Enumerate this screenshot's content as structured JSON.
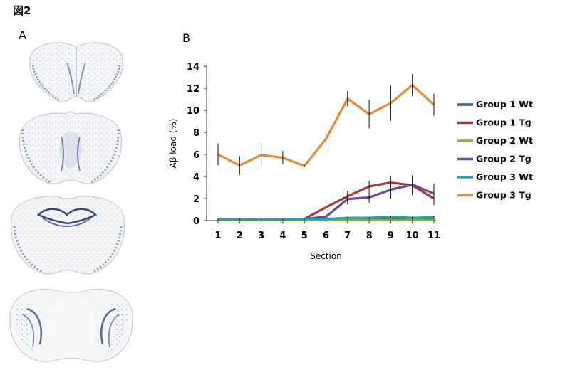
{
  "figure_title": "図2",
  "panel_a_label": "A",
  "panel_b_label": "B",
  "panel_a_images": [
    "brain-section-1",
    "brain-section-2",
    "brain-section-3",
    "brain-section-4"
  ],
  "colors": {
    "Group 1 Wt": "#2e5f8e",
    "Group 1 Tg": "#a33a38",
    "Group 2 Wt": "#7fb13f",
    "Group 2 Tg": "#6b4c97",
    "Group 3 Wt": "#2f9bad",
    "Group 3 Tg": "#e8893a"
  },
  "chart_data": {
    "type": "line",
    "title": "",
    "xlabel": "Section",
    "ylabel": "Aβ load (%)",
    "x": [
      1,
      2,
      3,
      4,
      5,
      6,
      7,
      8,
      9,
      10,
      11
    ],
    "ylim": [
      0,
      14
    ],
    "yticks": [
      0,
      2,
      4,
      6,
      8,
      10,
      12,
      14
    ],
    "legend_position": "right",
    "grid": false,
    "error_bars": true,
    "series": [
      {
        "name": "Group 1 Wt",
        "values": [
          0.1,
          0.1,
          0.1,
          0.1,
          0.1,
          0.1,
          0.1,
          0.1,
          0.1,
          0.1,
          0.1
        ],
        "err": [
          0.05,
          0.05,
          0.05,
          0.05,
          0.05,
          0.05,
          0.05,
          0.05,
          0.05,
          0.05,
          0.05
        ]
      },
      {
        "name": "Group 1 Tg",
        "values": [
          0.1,
          0.1,
          0.1,
          0.1,
          0.15,
          1.2,
          2.2,
          3.1,
          3.45,
          3.2,
          2.0
        ],
        "err": [
          0.05,
          0.05,
          0.05,
          0.05,
          0.1,
          0.5,
          0.5,
          0.5,
          0.6,
          0.9,
          0.6
        ]
      },
      {
        "name": "Group 2 Wt",
        "values": [
          0.05,
          0.05,
          0.05,
          0.05,
          0.05,
          0.05,
          0.05,
          0.05,
          0.05,
          0.05,
          0.05
        ],
        "err": [
          0.03,
          0.03,
          0.03,
          0.03,
          0.03,
          0.03,
          0.03,
          0.03,
          0.03,
          0.03,
          0.03
        ]
      },
      {
        "name": "Group 2 Tg",
        "values": [
          0.15,
          0.1,
          0.1,
          0.1,
          0.15,
          0.35,
          1.95,
          2.1,
          2.8,
          3.25,
          2.45
        ],
        "err": [
          0.05,
          0.05,
          0.05,
          0.05,
          0.1,
          1.0,
          0.5,
          0.5,
          0.8,
          0.8,
          0.9
        ]
      },
      {
        "name": "Group 3 Wt",
        "values": [
          0.1,
          0.1,
          0.1,
          0.1,
          0.15,
          0.15,
          0.25,
          0.25,
          0.35,
          0.25,
          0.3
        ],
        "err": [
          0.05,
          0.05,
          0.05,
          0.05,
          0.05,
          0.05,
          0.05,
          0.05,
          0.1,
          0.1,
          0.1
        ]
      },
      {
        "name": "Group 3 Tg",
        "values": [
          6.0,
          5.0,
          5.95,
          5.7,
          4.95,
          7.4,
          11.05,
          9.65,
          10.65,
          12.3,
          10.5
        ],
        "err": [
          1.0,
          0.85,
          1.1,
          0.6,
          0.1,
          1.0,
          0.7,
          1.3,
          1.6,
          1.0,
          1.0
        ]
      }
    ]
  }
}
